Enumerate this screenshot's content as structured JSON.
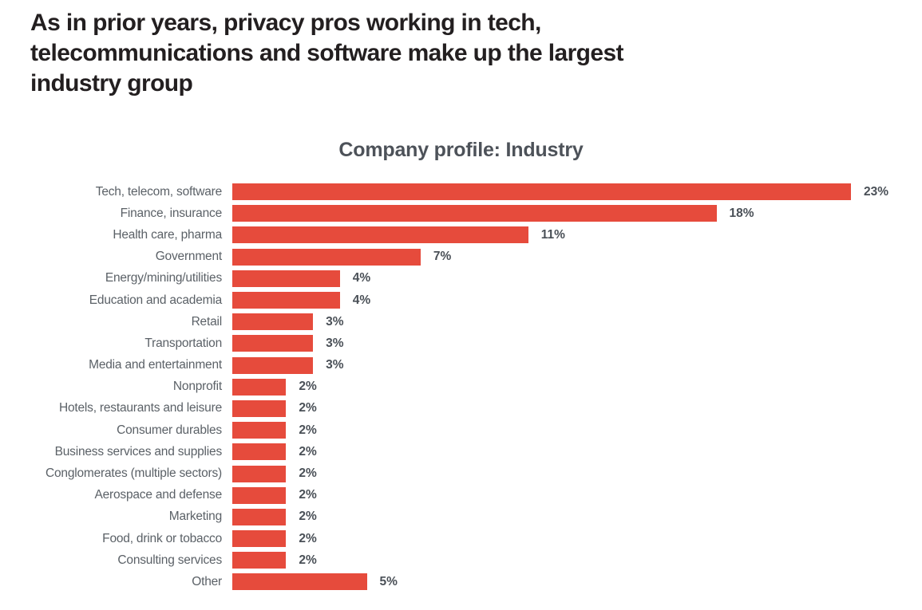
{
  "page": {
    "heading_lines": [
      "As in prior years, privacy pros working in tech,",
      "telecommunications and software make up the largest",
      "industry group"
    ],
    "heading_full": "As in prior years, privacy pros working in tech, telecommunications and software make up the largest industry group"
  },
  "chart_data": {
    "type": "bar",
    "orientation": "horizontal",
    "title": "Company profile: Industry",
    "categories": [
      "Tech, telecom, software",
      "Finance, insurance",
      "Health care, pharma",
      "Government",
      "Energy/mining/utilities",
      "Education and academia",
      "Retail",
      "Transportation",
      "Media and entertainment",
      "Nonprofit",
      "Hotels, restaurants and leisure",
      "Consumer durables",
      "Business services and supplies",
      "Conglomerates (multiple sectors)",
      "Aerospace and defense",
      "Marketing",
      "Food, drink or tobacco",
      "Consulting services",
      "Other"
    ],
    "values": [
      23,
      18,
      11,
      7,
      4,
      4,
      3,
      3,
      3,
      2,
      2,
      2,
      2,
      2,
      2,
      2,
      2,
      2,
      5
    ],
    "value_labels": [
      "23%",
      "18%",
      "11%",
      "7%",
      "4%",
      "4%",
      "3%",
      "3%",
      "3%",
      "2%",
      "2%",
      "2%",
      "2%",
      "2%",
      "2%",
      "2%",
      "2%",
      "2%",
      "5%"
    ],
    "xlabel": "",
    "ylabel": "",
    "xlim": [
      0,
      23
    ],
    "grid": false,
    "legend": false,
    "data_labels": "outside-end",
    "colors": {
      "bar": "#e64b3c",
      "category_label": "#5b6167",
      "value_label": "#4a5057",
      "title": "#4d5259",
      "heading": "#231f20",
      "background": "#ffffff"
    }
  }
}
